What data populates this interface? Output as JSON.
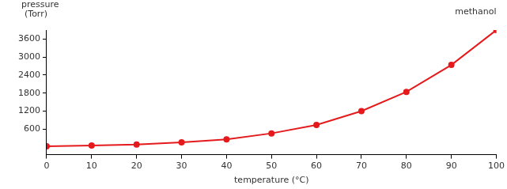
{
  "chart_data": {
    "type": "line",
    "title": "methanol",
    "xlabel": "temperature (°C)",
    "ylabel": "pressure (Torr)",
    "x": [
      0,
      10,
      20,
      30,
      40,
      50,
      60,
      70,
      80,
      90,
      100
    ],
    "series": [
      {
        "name": "methanol",
        "color": "#e41a1c",
        "marker": "circle",
        "values": [
          30,
          55,
          90,
          160,
          260,
          460,
          740,
          1200,
          1840,
          2740,
          3900
        ]
      }
    ],
    "xlim": [
      0,
      100
    ],
    "xticks": [
      0,
      10,
      20,
      30,
      40,
      50,
      60,
      70,
      80,
      90,
      100
    ],
    "ylim": [
      -250,
      3900
    ],
    "yticks": [
      600,
      1200,
      1800,
      2400,
      3000,
      3600
    ],
    "grid": false
  }
}
